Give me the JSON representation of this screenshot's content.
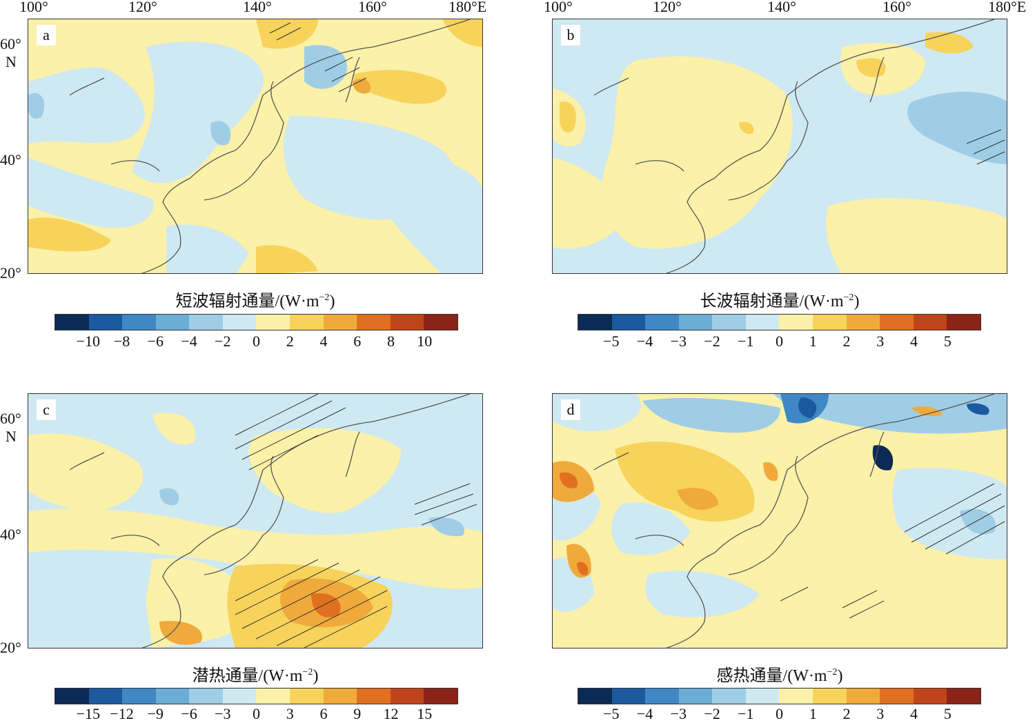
{
  "axes": {
    "lon_ticks": [
      "100°",
      "120°",
      "140°",
      "160°",
      "180°E"
    ],
    "lat_ticks": [
      "60°",
      "40°",
      "20°"
    ],
    "lat_unit": "N"
  },
  "panels": [
    {
      "id": "a",
      "label": "a",
      "title_text": "短波辐射通量/(W·m",
      "title_exp": "−2",
      "title_close": ")",
      "colorbar_ticks": [
        "−10",
        "−8",
        "−6",
        "−4",
        "−2",
        "0",
        "2",
        "4",
        "6",
        "8",
        "10"
      ]
    },
    {
      "id": "b",
      "label": "b",
      "title_text": "长波辐射通量/(W·m",
      "title_exp": "−2",
      "title_close": ")",
      "colorbar_ticks": [
        "−5",
        "−4",
        "−3",
        "−2",
        "−1",
        "0",
        "1",
        "2",
        "3",
        "4",
        "5"
      ]
    },
    {
      "id": "c",
      "label": "c",
      "title_text": "潜热通量/(W·m",
      "title_exp": "−2",
      "title_close": ")",
      "colorbar_ticks": [
        "−15",
        "−12",
        "−9",
        "−6",
        "−3",
        "0",
        "3",
        "6",
        "9",
        "12",
        "15"
      ]
    },
    {
      "id": "d",
      "label": "d",
      "title_text": "感热通量/(W·m",
      "title_exp": "−2",
      "title_close": ")",
      "colorbar_ticks": [
        "−5",
        "−4",
        "−3",
        "−2",
        "−1",
        "0",
        "1",
        "2",
        "3",
        "4",
        "5"
      ]
    }
  ],
  "colors": {
    "palette": [
      "#0b2a55",
      "#1b5a9e",
      "#3f88c5",
      "#6aaed6",
      "#9fcde6",
      "#cfe9f3",
      "#fbf1a8",
      "#f7d35b",
      "#f0aa3c",
      "#e07020",
      "#c0441a",
      "#8a2418"
    ],
    "coast": "#555555"
  }
}
